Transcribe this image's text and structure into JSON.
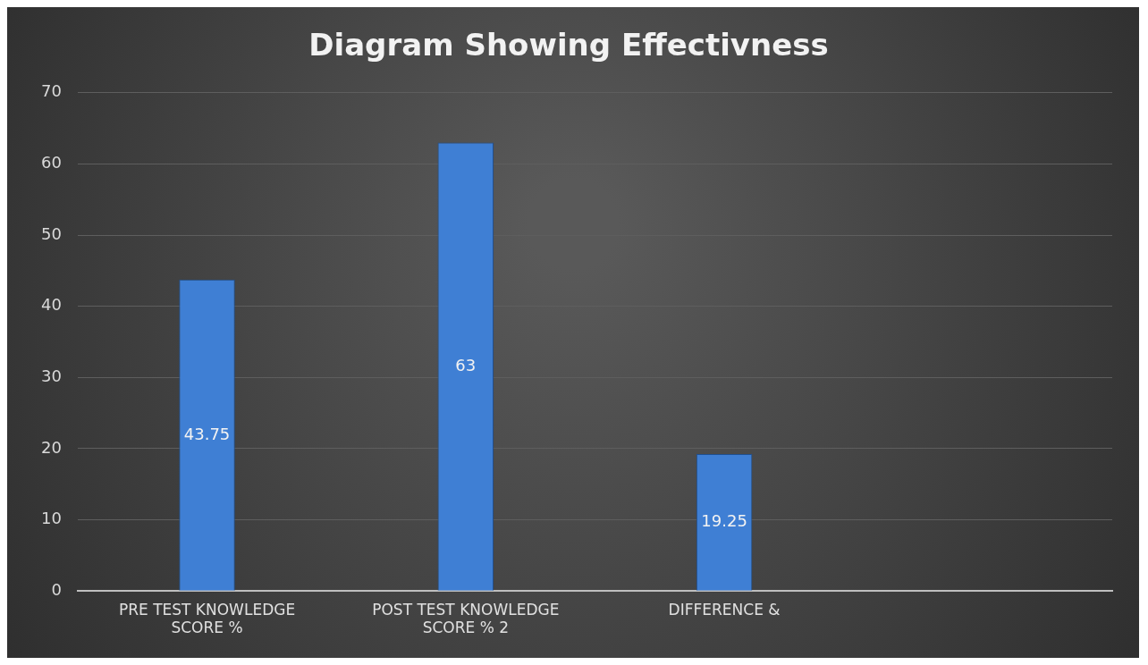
{
  "chart_data": {
    "type": "bar",
    "title": "Diagram Showing Effectivness",
    "categories": [
      "PRE TEST KNOWLEDGE SCORE %",
      "POST TEST KNOWLEDGE SCORE % 2",
      "DIFFERENCE &",
      null
    ],
    "values": [
      43.75,
      63,
      19.25,
      null
    ],
    "color": "#3f7fd4",
    "ylim": [
      0,
      70
    ],
    "yticks": [
      0,
      10,
      20,
      30,
      40,
      50,
      60,
      70
    ],
    "grid": "y",
    "data_labels": true
  }
}
